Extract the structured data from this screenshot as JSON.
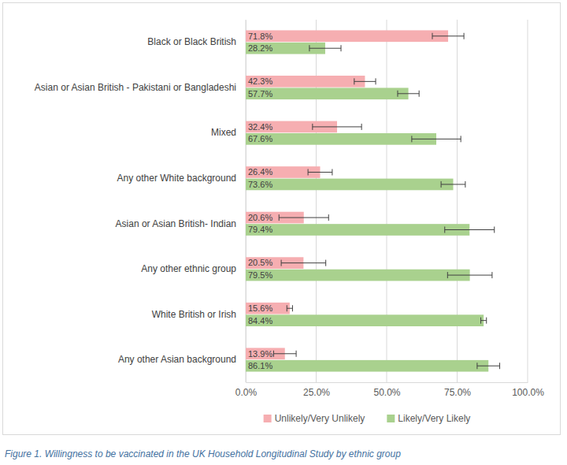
{
  "chart_data": {
    "type": "bar",
    "orientation": "horizontal",
    "caption": "Figure 1. Willingness to be vaccinated in the UK Household Longitudinal Study by ethnic group",
    "categories": [
      "Black or Black British",
      "Asian or Asian British - Pakistani or Bangladeshi",
      "Mixed",
      "Any other White background",
      "Asian or Asian British- Indian",
      "Any other ethnic group",
      "White British or Irish",
      "Any other Asian background"
    ],
    "series": [
      {
        "name": "Unlikely/Very Unlikely",
        "color": "#f6aeb1",
        "values": [
          71.8,
          42.3,
          32.4,
          26.4,
          20.6,
          20.5,
          15.6,
          13.9
        ],
        "value_labels": [
          "71.8%",
          "42.3%",
          "32.4%",
          "26.4%",
          "20.6%",
          "20.5%",
          "15.6%",
          "13.9%"
        ],
        "errors": [
          5.6,
          3.8,
          8.7,
          4.3,
          8.8,
          7.9,
          1.0,
          4.0
        ]
      },
      {
        "name": "Likely/Very Likely",
        "color": "#a9d18e",
        "values": [
          28.2,
          57.7,
          67.6,
          73.6,
          79.4,
          79.5,
          84.4,
          86.1
        ],
        "value_labels": [
          "28.2%",
          "57.7%",
          "67.6%",
          "73.6%",
          "79.4%",
          "79.5%",
          "84.4%",
          "86.1%"
        ],
        "errors": [
          5.6,
          3.8,
          8.7,
          4.3,
          8.8,
          7.9,
          1.0,
          4.0
        ]
      }
    ],
    "xlim": [
      0,
      100
    ],
    "xticks": [
      {
        "value": 0,
        "label": "0.0%"
      },
      {
        "value": 25,
        "label": "25.0%"
      },
      {
        "value": 50,
        "label": "50.0%"
      },
      {
        "value": 75,
        "label": "75.0%"
      },
      {
        "value": 100,
        "label": "100.0%"
      }
    ],
    "grid": true,
    "data_labels": true,
    "legend": "bottom"
  }
}
